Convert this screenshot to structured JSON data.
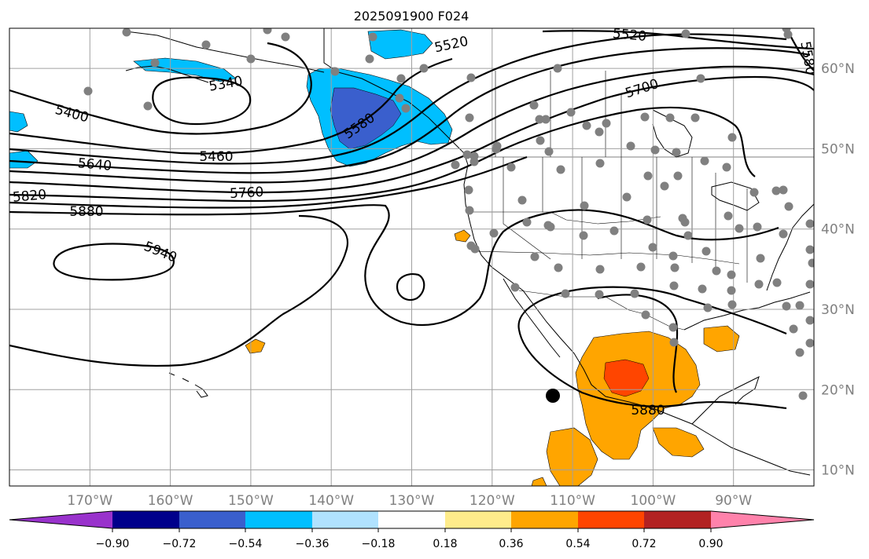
{
  "title": "2025091900 F024",
  "map": {
    "lon_range": [
      -180,
      -80
    ],
    "lat_range": [
      8,
      65
    ],
    "lon_ticks": [
      {
        "value": -170,
        "label": "170°W"
      },
      {
        "value": -160,
        "label": "160°W"
      },
      {
        "value": -150,
        "label": "150°W"
      },
      {
        "value": -140,
        "label": "140°W"
      },
      {
        "value": -130,
        "label": "130°W"
      },
      {
        "value": -120,
        "label": "120°W"
      },
      {
        "value": -110,
        "label": "110°W"
      },
      {
        "value": -100,
        "label": "100°W"
      },
      {
        "value": -90,
        "label": "90°W"
      }
    ],
    "lat_ticks": [
      {
        "value": 60,
        "label": "60°N"
      },
      {
        "value": 50,
        "label": "50°N"
      },
      {
        "value": 40,
        "label": "40°N"
      },
      {
        "value": 30,
        "label": "30°N"
      },
      {
        "value": 20,
        "label": "20°N"
      },
      {
        "value": 10,
        "label": "10°N"
      }
    ],
    "grid": true,
    "contour_labels": [
      "5340",
      "5400",
      "5460",
      "5520",
      "5580",
      "5640",
      "5700",
      "5760",
      "5820",
      "5880",
      "5940"
    ],
    "colorbar": {
      "ticks": [
        "−0.90",
        "−0.72",
        "−0.54",
        "−0.36",
        "−0.18",
        "0.18",
        "0.36",
        "0.54",
        "0.72",
        "0.90"
      ],
      "colors": [
        "#9932cc",
        "#00008b",
        "#3a5fcd",
        "#00bfff",
        "#b0e2ff",
        "#ffffff",
        "#ffec8b",
        "#ffa500",
        "#ff4500",
        "#b22222",
        "#ff82ab"
      ],
      "extend": "both"
    },
    "station_color": "#808080",
    "marker_color": "#000000"
  }
}
